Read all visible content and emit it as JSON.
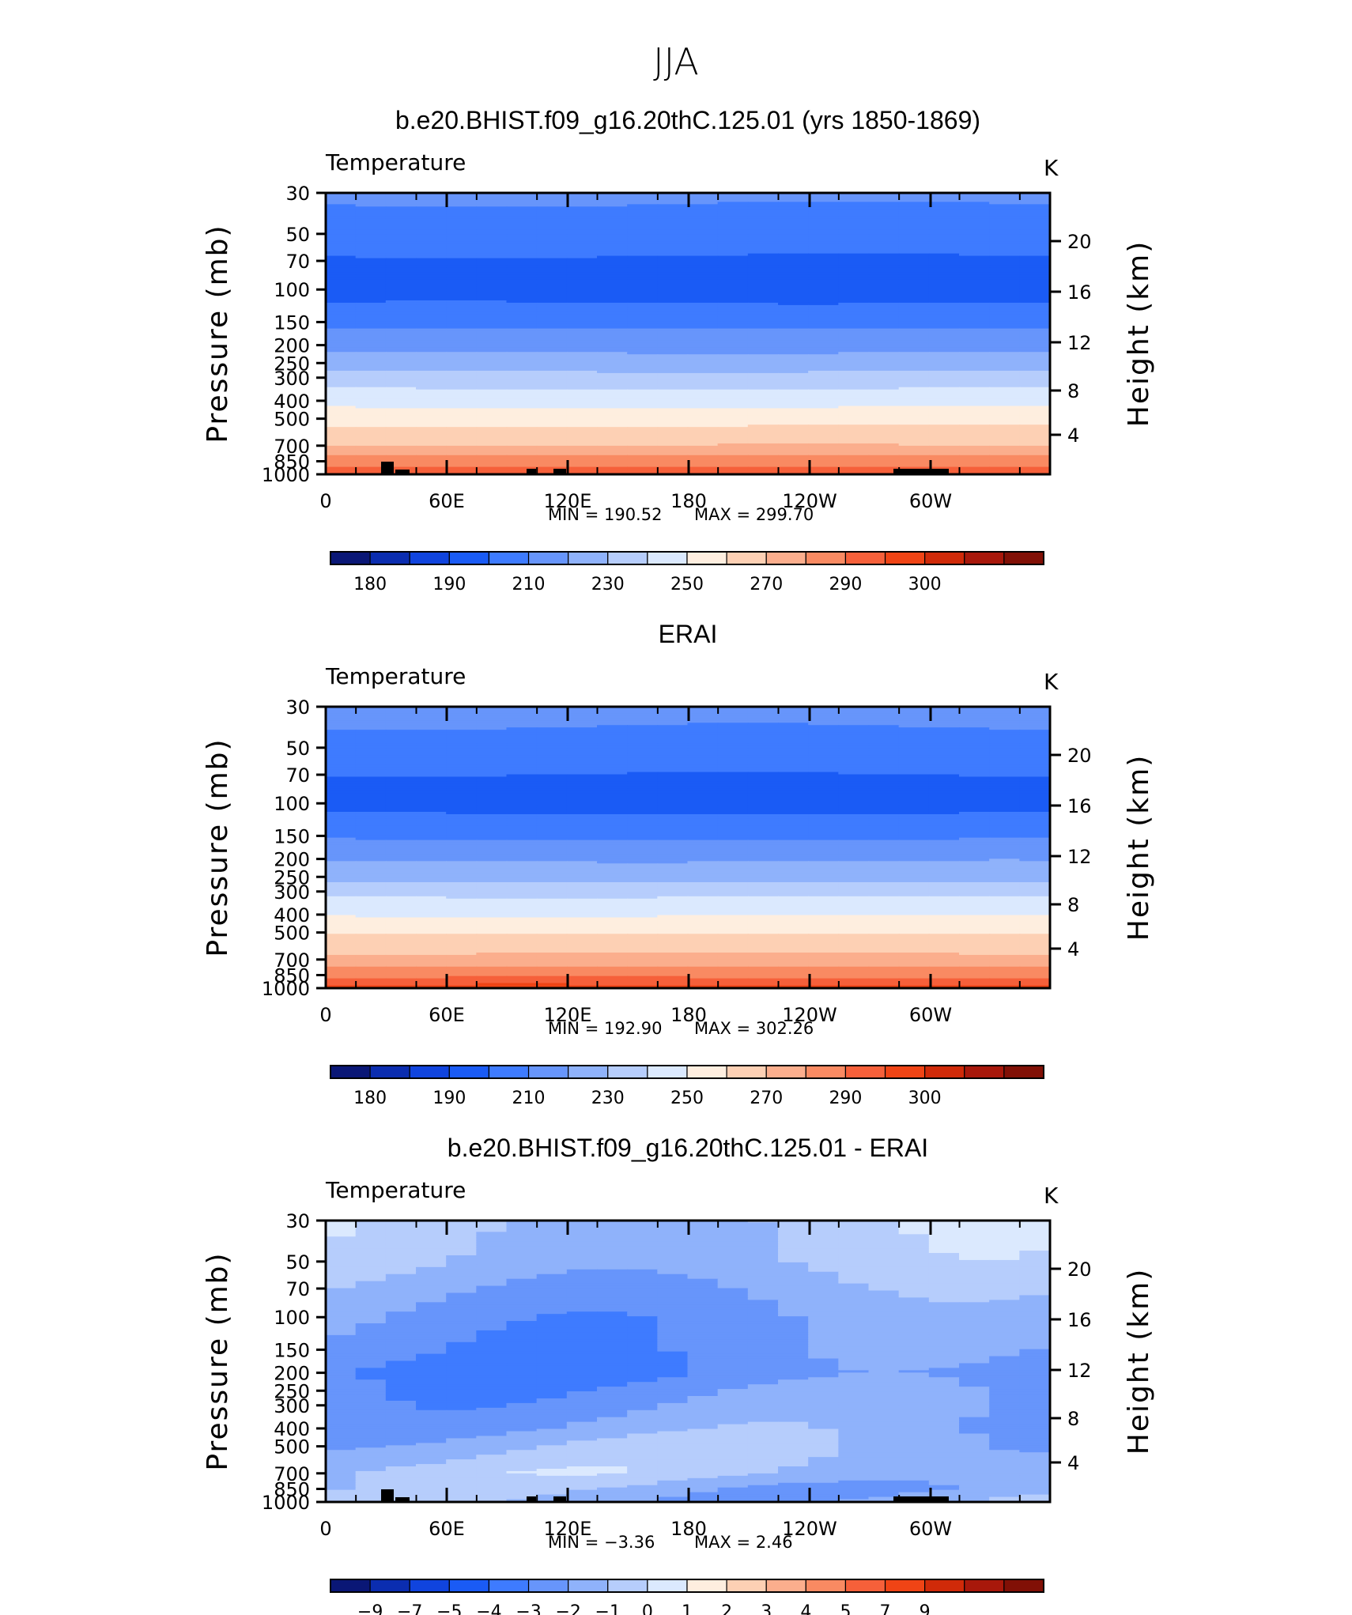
{
  "figure": {
    "title": "JJA"
  },
  "colors": {
    "levels_abs": [
      "#0a1776",
      "#0b2db0",
      "#1044de",
      "#1a5bf5",
      "#3e7bff",
      "#6795fb",
      "#8fb2fb",
      "#b6cdfc",
      "#dbe9fe",
      "#feeedf",
      "#fdd0b4",
      "#fbae8d",
      "#f98a62",
      "#f6603a",
      "#f04415",
      "#d02a09",
      "#a8180b",
      "#811006"
    ],
    "levels_diff": [
      "#0a1776",
      "#0b2db0",
      "#1044de",
      "#1a5bf5",
      "#3e7bff",
      "#6795fb",
      "#8fb2fb",
      "#b6cdfc",
      "#dbe9fe",
      "#feeedf",
      "#fdd0b4",
      "#fbae8d",
      "#f98a62",
      "#f6603a",
      "#f04415",
      "#d02a09",
      "#a8180b",
      "#811006"
    ]
  },
  "colorbars": {
    "abs_labels": [
      "180",
      "190",
      "210",
      "230",
      "250",
      "270",
      "290",
      "300"
    ],
    "diff_labels": [
      "−9",
      "−7",
      "−5",
      "−4",
      "−3",
      "−2",
      "−1",
      "0",
      "1",
      "2",
      "3",
      "4",
      "5",
      "7",
      "9"
    ]
  },
  "chart_data": [
    {
      "type": "heatmap",
      "title": "b.e20.BHIST.f09_g16.20thC.125.01 (yrs 1850-1869)",
      "variable": "Temperature",
      "units": "K",
      "ylabel": "Pressure (mb)",
      "ylabel_right": "Height (km)",
      "x_ticks": [
        "0",
        "60E",
        "120E",
        "180",
        "120W",
        "60W"
      ],
      "y_ticks": [
        "30",
        "50",
        "70",
        "100",
        "150",
        "200",
        "250",
        "300",
        "400",
        "500",
        "700",
        "850",
        "1000"
      ],
      "y_ticks_right": [
        "20",
        "16",
        "12",
        "8",
        "4"
      ],
      "scale": "log pressure",
      "min_label": "MIN  =  190.52",
      "max_label": "MAX  =  299.70",
      "min": 190.52,
      "max": 299.7,
      "color_levels": [
        180,
        185,
        190,
        200,
        210,
        220,
        230,
        240,
        250,
        260,
        270,
        280,
        290,
        295,
        300
      ],
      "profile": [
        [
          30,
          212
        ],
        [
          50,
          205
        ],
        [
          70,
          199
        ],
        [
          100,
          195
        ],
        [
          150,
          207
        ],
        [
          200,
          217
        ],
        [
          250,
          224
        ],
        [
          300,
          234
        ],
        [
          400,
          246
        ],
        [
          500,
          256
        ],
        [
          700,
          270
        ],
        [
          850,
          285
        ],
        [
          1000,
          295
        ]
      ]
    },
    {
      "type": "heatmap",
      "title": "ERAI",
      "variable": "Temperature",
      "units": "K",
      "ylabel": "Pressure (mb)",
      "ylabel_right": "Height (km)",
      "x_ticks": [
        "0",
        "60E",
        "120E",
        "180",
        "120W",
        "60W"
      ],
      "y_ticks": [
        "30",
        "50",
        "70",
        "100",
        "150",
        "200",
        "250",
        "300",
        "400",
        "500",
        "700",
        "850",
        "1000"
      ],
      "y_ticks_right": [
        "20",
        "16",
        "12",
        "8",
        "4"
      ],
      "scale": "log pressure",
      "min_label": "MIN  =  192.90",
      "max_label": "MAX  =  302.26",
      "min": 192.9,
      "max": 302.26,
      "color_levels": [
        180,
        185,
        190,
        200,
        210,
        220,
        230,
        240,
        250,
        260,
        270,
        280,
        290,
        295,
        300
      ],
      "profile": [
        [
          30,
          213
        ],
        [
          50,
          207
        ],
        [
          70,
          200
        ],
        [
          100,
          196
        ],
        [
          150,
          208
        ],
        [
          200,
          219
        ],
        [
          250,
          226
        ],
        [
          300,
          237
        ],
        [
          400,
          249
        ],
        [
          500,
          259
        ],
        [
          700,
          273
        ],
        [
          850,
          288
        ],
        [
          1000,
          297
        ]
      ]
    },
    {
      "type": "heatmap",
      "title": "b.e20.BHIST.f09_g16.20thC.125.01 - ERAI",
      "variable": "Temperature",
      "units": "K",
      "ylabel": "Pressure (mb)",
      "ylabel_right": "Height (km)",
      "x_ticks": [
        "0",
        "60E",
        "120E",
        "180",
        "120W",
        "60W"
      ],
      "y_ticks": [
        "30",
        "50",
        "70",
        "100",
        "150",
        "200",
        "250",
        "300",
        "400",
        "500",
        "700",
        "850",
        "1000"
      ],
      "y_ticks_right": [
        "20",
        "16",
        "12",
        "8",
        "4"
      ],
      "scale": "log pressure",
      "min_label": "MIN  =    −3.36",
      "max_label": "MAX  =       2.46",
      "min": -3.36,
      "max": 2.46,
      "color_levels": [
        -9,
        -7,
        -5,
        -4,
        -3,
        -2,
        -1,
        0,
        1,
        2,
        3,
        4,
        5,
        7,
        9
      ],
      "profile": [
        [
          30,
          -0.6
        ],
        [
          50,
          -0.9
        ],
        [
          70,
          -1.6
        ],
        [
          100,
          -2.2
        ],
        [
          150,
          -2.5
        ],
        [
          200,
          -2.9
        ],
        [
          250,
          -2.4
        ],
        [
          300,
          -2.2
        ],
        [
          400,
          -1.8
        ],
        [
          500,
          -1.2
        ],
        [
          700,
          -0.8
        ],
        [
          850,
          -1.5
        ],
        [
          1000,
          -1.4
        ]
      ]
    }
  ]
}
